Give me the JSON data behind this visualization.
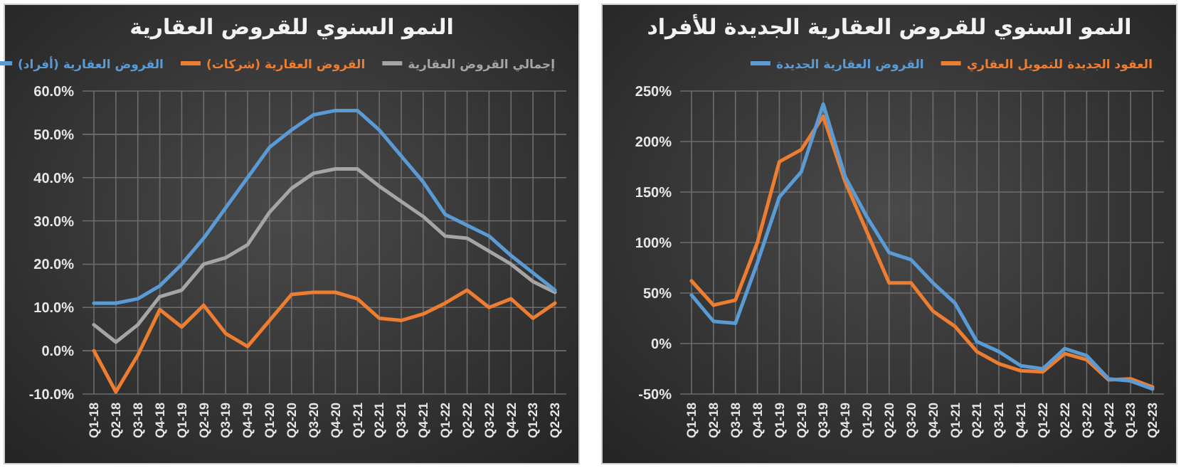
{
  "chart_data": [
    {
      "type": "line",
      "title": "النمو السنوي للقروض العقارية",
      "categories": [
        "Q1-18",
        "Q2-18",
        "Q3-18",
        "Q4-18",
        "Q1-19",
        "Q2-19",
        "Q3-19",
        "Q4-19",
        "Q1-20",
        "Q2-20",
        "Q3-20",
        "Q4-20",
        "Q1-21",
        "Q2-21",
        "Q3-21",
        "Q4-21",
        "Q1-22",
        "Q2-22",
        "Q3-22",
        "Q4-22",
        "Q1-23",
        "Q2-23"
      ],
      "series": [
        {
          "name": "إجمالي القروض العقارية",
          "color": "#a5a5a5",
          "values": [
            6,
            2,
            6,
            12.5,
            14,
            20,
            21.5,
            24.5,
            32,
            37.5,
            41,
            42,
            42,
            38,
            34.5,
            31,
            26.5,
            26,
            23,
            20,
            16,
            13.5
          ]
        },
        {
          "name": "القروض العقارية (شركات)",
          "color": "#ed7d31",
          "values": [
            0,
            -9.5,
            -1,
            9.5,
            5.5,
            10.5,
            4,
            1,
            7,
            13,
            13.5,
            13.5,
            12,
            7.5,
            7,
            8.5,
            11,
            14,
            10,
            12,
            7.5,
            11
          ]
        },
        {
          "name": "القروض العقارية (أفراد)",
          "color": "#5b9bd5",
          "values": [
            11,
            11,
            12,
            15,
            20,
            26,
            33,
            40,
            47,
            51,
            54.5,
            55.5,
            55.5,
            51,
            45,
            39,
            31.5,
            29,
            26.5,
            22,
            18,
            14
          ]
        }
      ],
      "ylim": [
        -10,
        60
      ],
      "yticks": [
        {
          "value": -10,
          "label": "-10.0%"
        },
        {
          "value": 0,
          "label": "0.0%"
        },
        {
          "value": 10,
          "label": "10.0%"
        },
        {
          "value": 20,
          "label": "20.0%"
        },
        {
          "value": 30,
          "label": "30.0%"
        },
        {
          "value": 40,
          "label": "40.0%"
        },
        {
          "value": 50,
          "label": "50.0%"
        },
        {
          "value": 60,
          "label": "60.0%"
        }
      ],
      "grid": true,
      "legend": "top"
    },
    {
      "type": "line",
      "title": "النمو السنوي للقروض العقارية الجديدة للأفراد",
      "categories": [
        "Q1-18",
        "Q2-18",
        "Q3-18",
        "Q4-18",
        "Q1-19",
        "Q2-19",
        "Q3-19",
        "Q4-19",
        "Q1-20",
        "Q2-20",
        "Q3-20",
        "Q4-20",
        "Q1-21",
        "Q2-21",
        "Q3-21",
        "Q4-21",
        "Q1-22",
        "Q2-22",
        "Q3-22",
        "Q4-22",
        "Q1-23",
        "Q2-23"
      ],
      "series": [
        {
          "name": "العقود الجديدة للتمويل العقاري",
          "color": "#ed7d31",
          "values": [
            62,
            38,
            43,
            100,
            180,
            192,
            225,
            160,
            110,
            60,
            60,
            32,
            17,
            -8,
            -20,
            -27,
            -28,
            -10,
            -16,
            -36,
            -35,
            -43
          ]
        },
        {
          "name": "القروض العقارية الجديدة",
          "color": "#5b9bd5",
          "values": [
            48,
            22,
            20,
            80,
            145,
            170,
            237,
            165,
            125,
            90,
            83,
            60,
            40,
            2,
            -8,
            -22,
            -25,
            -5,
            -12,
            -35,
            -37,
            -45
          ]
        }
      ],
      "ylim": [
        -50,
        250
      ],
      "yticks": [
        {
          "value": -50,
          "label": "-50%"
        },
        {
          "value": 0,
          "label": "0%"
        },
        {
          "value": 50,
          "label": "50%"
        },
        {
          "value": 100,
          "label": "100%"
        },
        {
          "value": 150,
          "label": "150%"
        },
        {
          "value": 200,
          "label": "200%"
        },
        {
          "value": 250,
          "label": "250%"
        }
      ],
      "grid": true,
      "legend": "top"
    }
  ]
}
